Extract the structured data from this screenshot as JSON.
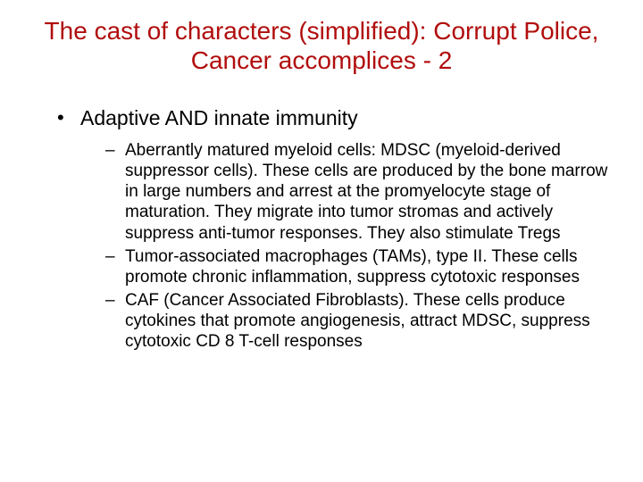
{
  "colors": {
    "title": "#b10d0d",
    "body": "#000000",
    "background": "#ffffff"
  },
  "typography": {
    "title_fontsize": 28,
    "level1_fontsize": 23,
    "level2_fontsize": 19,
    "font_family": "Arial"
  },
  "title": "The cast of characters (simplified): Corrupt Police, Cancer accomplices - 2",
  "bullets": {
    "level1": [
      {
        "text": "Adaptive AND innate immunity",
        "children": [
          "Aberrantly matured myeloid cells: MDSC (myeloid-derived suppressor cells). These cells are produced by the bone marrow in large numbers and arrest at the promyelocyte stage of maturation. They migrate into tumor stromas and actively suppress anti-tumor responses. They also stimulate Tregs",
          "Tumor-associated macrophages (TAMs), type II. These cells promote chronic inflammation, suppress cytotoxic responses",
          "CAF (Cancer Associated Fibroblasts). These cells produce cytokines that promote angiogenesis, attract MDSC, suppress cytotoxic CD 8 T-cell responses"
        ]
      }
    ]
  }
}
